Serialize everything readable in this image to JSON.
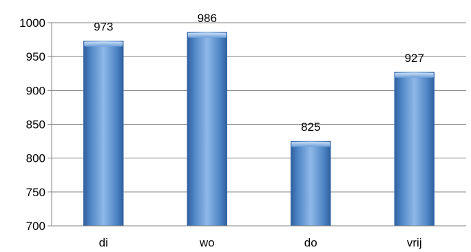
{
  "chart_data": {
    "type": "bar",
    "categories": [
      "di",
      "wo",
      "do",
      "vrij"
    ],
    "values": [
      973,
      986,
      825,
      927
    ],
    "data_labels": [
      "973",
      "986",
      "825",
      "927"
    ],
    "title": "",
    "xlabel": "",
    "ylabel": "",
    "ylim": [
      700,
      1000
    ],
    "yticks": [
      700,
      750,
      800,
      850,
      900,
      950,
      1000
    ],
    "grid": true,
    "legend": "none",
    "colors": {
      "bar_light": "#8fb8e8",
      "bar_mid": "#4f86c6",
      "bar_dark": "#2f5f9e",
      "gridline": "#808080",
      "axis": "#808080"
    }
  }
}
